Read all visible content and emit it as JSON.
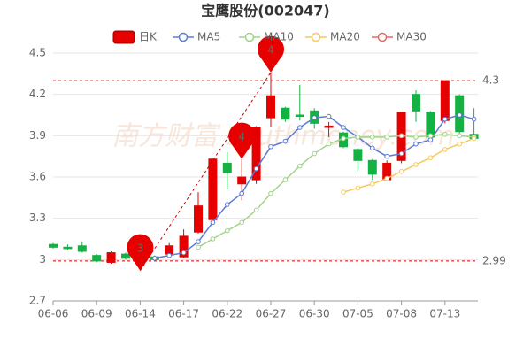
{
  "chart_data": {
    "type": "candlestick",
    "title": "宝鹰股份(002047)",
    "watermark": "南方财富 southmoney.com",
    "categories": [
      "06-06",
      null,
      null,
      "06-09",
      null,
      null,
      "06-14",
      null,
      null,
      "06-17",
      null,
      null,
      "06-22",
      null,
      null,
      "06-27",
      null,
      null,
      "06-30",
      null,
      null,
      "07-05",
      null,
      null,
      "07-08",
      null,
      null,
      "07-13",
      null,
      null
    ],
    "candles": {
      "name": "日K",
      "up_color": "#e60000",
      "down_color": "#14b143",
      "open": [
        3.11,
        3.09,
        3.1,
        3.03,
        2.98,
        3.04,
        3.0,
        3.02,
        3.04,
        3.02,
        3.2,
        3.29,
        3.7,
        3.55,
        3.58,
        4.03,
        4.1,
        4.05,
        4.08,
        3.96,
        3.92,
        3.8,
        3.72,
        3.58,
        3.72,
        4.2,
        4.07,
        4.01,
        4.19,
        3.91
      ],
      "close": [
        3.09,
        3.08,
        3.06,
        2.99,
        3.05,
        3.01,
        3.01,
        3.0,
        3.1,
        3.17,
        3.39,
        3.73,
        3.63,
        3.6,
        3.96,
        4.19,
        4.02,
        4.04,
        3.99,
        3.97,
        3.82,
        3.72,
        3.62,
        3.7,
        4.07,
        4.08,
        3.89,
        4.3,
        3.93,
        3.88
      ],
      "high": [
        3.12,
        3.11,
        3.13,
        3.04,
        3.06,
        3.05,
        3.02,
        3.03,
        3.12,
        3.22,
        3.49,
        3.73,
        3.78,
        3.73,
        3.97,
        4.36,
        4.11,
        4.27,
        4.1,
        4.0,
        3.93,
        3.81,
        3.73,
        3.72,
        4.07,
        4.23,
        4.08,
        4.3,
        4.2,
        4.1
      ],
      "low": [
        3.08,
        3.07,
        3.05,
        2.98,
        2.97,
        3.0,
        2.92,
        2.99,
        3.03,
        3.01,
        3.19,
        3.29,
        3.51,
        3.43,
        3.55,
        3.96,
        4.0,
        4.01,
        3.95,
        3.89,
        3.81,
        3.64,
        3.58,
        3.57,
        3.7,
        4.0,
        3.87,
        3.99,
        3.91,
        3.87
      ]
    },
    "series": [
      {
        "name": "MA5",
        "color": "#5b7bd5",
        "values": [
          null,
          null,
          null,
          null,
          null,
          null,
          null,
          3.01,
          3.03,
          3.05,
          3.13,
          3.27,
          3.4,
          3.48,
          3.66,
          3.82,
          3.86,
          3.96,
          4.03,
          4.04,
          3.96,
          3.89,
          3.81,
          3.75,
          3.77,
          3.84,
          3.87,
          4.02,
          4.05,
          4.02
        ]
      },
      {
        "name": "MA10",
        "color": "#9fd48a",
        "values": [
          null,
          null,
          null,
          null,
          null,
          null,
          null,
          null,
          null,
          null,
          3.09,
          3.15,
          3.21,
          3.27,
          3.36,
          3.48,
          3.58,
          3.68,
          3.77,
          3.84,
          3.88,
          3.89,
          3.89,
          3.89,
          3.9,
          3.89,
          3.9,
          3.91,
          3.9,
          3.89
        ]
      },
      {
        "name": "MA20",
        "color": "#f6c85f",
        "values": [
          null,
          null,
          null,
          null,
          null,
          null,
          null,
          null,
          null,
          null,
          null,
          null,
          null,
          null,
          null,
          null,
          null,
          null,
          null,
          null,
          3.49,
          3.52,
          3.55,
          3.59,
          3.64,
          3.69,
          3.74,
          3.8,
          3.84,
          3.88
        ]
      },
      {
        "name": "MA30",
        "color": "#ef6567",
        "values": [
          null,
          null,
          null,
          null,
          null,
          null,
          null,
          null,
          null,
          null,
          null,
          null,
          null,
          null,
          null,
          null,
          null,
          null,
          null,
          null,
          null,
          null,
          null,
          null,
          null,
          null,
          null,
          null,
          null,
          null
        ]
      }
    ],
    "markers": [
      {
        "label": "3",
        "index": 6,
        "value": 2.92
      },
      {
        "label": "4",
        "index": 13,
        "value": 3.73
      },
      {
        "label": "4",
        "index": 15,
        "value": 4.36
      }
    ],
    "ref_lines": [
      4.3,
      2.99
    ],
    "ylim": [
      2.7,
      4.5
    ],
    "yticks": [
      2.7,
      3,
      3.3,
      3.6,
      3.9,
      4.2,
      4.5
    ],
    "grid": true
  }
}
